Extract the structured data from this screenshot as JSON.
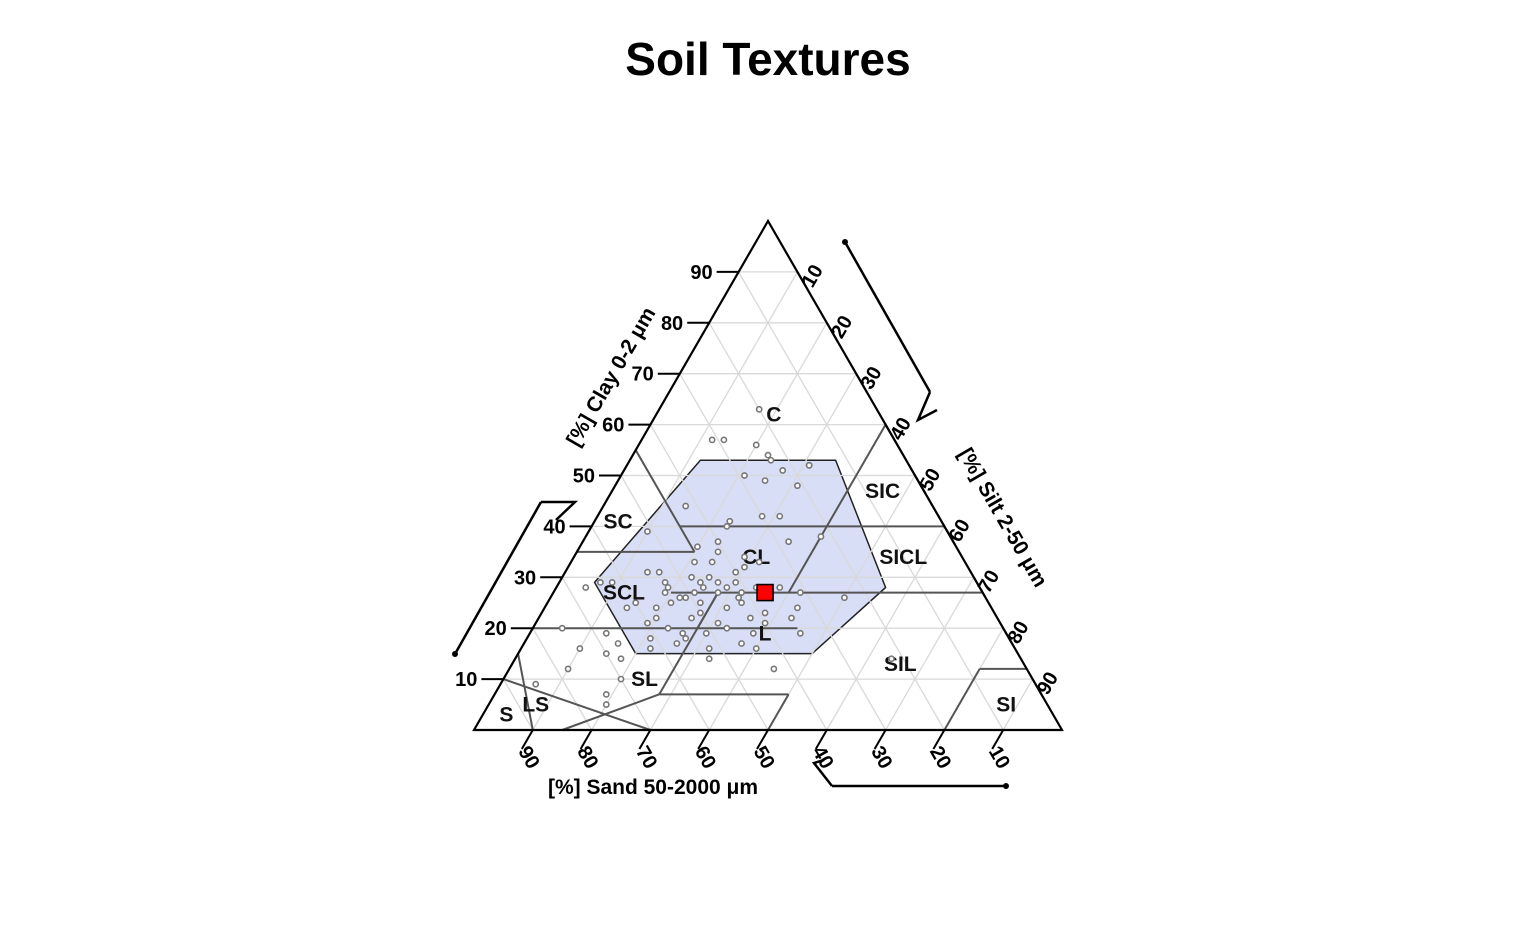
{
  "chart_data": {
    "type": "scatter",
    "subtype": "ternary-soil-texture",
    "title": "Soil Textures",
    "axes": {
      "clay": {
        "label": "[%] Clay 0-2 μm",
        "ticks": [
          10,
          20,
          30,
          40,
          50,
          60,
          70,
          80,
          90
        ]
      },
      "silt": {
        "label": "[%] Silt 2-50 μm",
        "ticks": [
          10,
          20,
          30,
          40,
          50,
          60,
          70,
          80,
          90
        ]
      },
      "sand": {
        "label": "[%] Sand 50-2000 μm",
        "ticks": [
          90,
          80,
          70,
          60,
          50,
          40,
          30,
          20,
          10
        ]
      },
      "ranges": [
        0,
        100
      ],
      "grid": true,
      "grid_step": 10
    },
    "texture_classes": [
      {
        "label": "C",
        "at": {
          "clay": 62,
          "silt": 20
        },
        "polygon": [
          [
            40,
            0
          ],
          [
            100,
            0
          ],
          [
            60,
            40
          ],
          [
            40,
            40
          ],
          [
            40,
            15
          ],
          [
            45,
            0
          ]
        ]
      },
      {
        "label": "SIC",
        "at": {
          "clay": 47,
          "silt": 46
        },
        "polygon": [
          [
            40,
            40
          ],
          [
            60,
            40
          ],
          [
            40,
            60
          ]
        ]
      },
      {
        "label": "SC",
        "at": {
          "clay": 41,
          "silt": 4
        },
        "polygon": [
          [
            35,
            0
          ],
          [
            55,
            0
          ],
          [
            35,
            20
          ]
        ]
      },
      {
        "label": "SICL",
        "at": {
          "clay": 34,
          "silt": 56
        },
        "polygon": [
          [
            27,
            40
          ],
          [
            40,
            40
          ],
          [
            40,
            60
          ],
          [
            27,
            73
          ]
        ]
      },
      {
        "label": "CL",
        "at": {
          "clay": 34,
          "silt": 31
        },
        "polygon": [
          [
            27,
            20
          ],
          [
            40,
            15
          ],
          [
            40,
            40
          ],
          [
            27,
            40
          ]
        ]
      },
      {
        "label": "SCL",
        "at": {
          "clay": 27,
          "silt": 12
        },
        "polygon": [
          [
            20,
            0
          ],
          [
            35,
            0
          ],
          [
            35,
            20
          ],
          [
            27,
            28
          ],
          [
            20,
            28
          ]
        ]
      },
      {
        "label": "L",
        "at": {
          "clay": 19,
          "silt": 40
        },
        "polygon": [
          [
            7,
            28
          ],
          [
            27,
            28
          ],
          [
            27,
            50
          ],
          [
            7,
            50
          ]
        ]
      },
      {
        "label": "SIL",
        "at": {
          "clay": 13,
          "silt": 66
        },
        "polygon": [
          [
            0,
            50
          ],
          [
            27,
            50
          ],
          [
            27,
            73
          ],
          [
            12,
            88
          ],
          [
            0,
            80
          ]
        ]
      },
      {
        "label": "SL",
        "at": {
          "clay": 10,
          "silt": 24
        },
        "polygon": [
          [
            0,
            15
          ],
          [
            7,
            28
          ],
          [
            7,
            50
          ],
          [
            0,
            50
          ]
        ]
      },
      {
        "label": "LS",
        "at": {
          "clay": 5,
          "silt": 8
        },
        "polygon": [
          [
            0,
            10
          ],
          [
            15,
            0
          ],
          [
            0,
            30
          ]
        ]
      },
      {
        "label": "S",
        "at": {
          "clay": 3,
          "silt": 4
        },
        "polygon": [
          [
            0,
            0
          ],
          [
            10,
            0
          ],
          [
            0,
            10
          ]
        ]
      },
      {
        "label": "SI",
        "at": {
          "clay": 5,
          "silt": 88
        },
        "polygon": [
          [
            0,
            80
          ],
          [
            12,
            88
          ],
          [
            12,
            88
          ],
          [
            0,
            100
          ]
        ]
      }
    ],
    "class_boundaries": [
      [
        [
          55,
          0
        ],
        [
          40,
          15
        ]
      ],
      [
        [
          40,
          15
        ],
        [
          40,
          60
        ]
      ],
      [
        [
          40,
          60
        ],
        [
          60,
          40
        ]
      ],
      [
        [
          35,
          0
        ],
        [
          35,
          20
        ]
      ],
      [
        [
          35,
          20
        ],
        [
          40,
          15
        ]
      ],
      [
        [
          40,
          40
        ],
        [
          27,
          40
        ]
      ],
      [
        [
          40,
          40
        ],
        [
          60,
          40
        ]
      ],
      [
        [
          27,
          20
        ],
        [
          27,
          73
        ]
      ],
      [
        [
          27,
          28
        ],
        [
          20,
          28
        ]
      ],
      [
        [
          20,
          0
        ],
        [
          20,
          28
        ]
      ],
      [
        [
          27,
          28
        ],
        [
          7,
          28
        ]
      ],
      [
        [
          7,
          28
        ],
        [
          7,
          50
        ]
      ],
      [
        [
          7,
          50
        ],
        [
          0,
          50
        ]
      ],
      [
        [
          12,
          88
        ],
        [
          12,
          80
        ]
      ],
      [
        [
          12,
          80
        ],
        [
          0,
          80
        ]
      ],
      [
        [
          10,
          0
        ],
        [
          0,
          30
        ]
      ],
      [
        [
          15,
          0
        ],
        [
          0,
          10
        ]
      ],
      [
        [
          20,
          28
        ],
        [
          20,
          45
        ]
      ],
      [
        [
          0,
          15
        ],
        [
          7,
          28
        ]
      ]
    ],
    "highlight_region": {
      "color": "#d6dcf5",
      "polygon": [
        [
          15,
          20
        ],
        [
          15,
          50
        ],
        [
          28,
          56
        ],
        [
          53,
          35
        ],
        [
          53,
          12
        ],
        [
          29,
          6
        ]
      ]
    },
    "samples": [
      [
        63,
        17
      ],
      [
        57,
        12
      ],
      [
        57,
        14
      ],
      [
        56,
        20
      ],
      [
        54,
        23
      ],
      [
        53,
        24
      ],
      [
        52,
        31
      ],
      [
        52,
        31
      ],
      [
        51,
        27
      ],
      [
        50,
        21
      ],
      [
        49,
        25
      ],
      [
        48,
        31
      ],
      [
        44,
        14
      ],
      [
        42,
        28
      ],
      [
        42,
        31
      ],
      [
        41,
        23
      ],
      [
        40,
        23
      ],
      [
        39,
        10
      ],
      [
        38,
        40
      ],
      [
        37,
        23
      ],
      [
        37,
        35
      ],
      [
        36,
        20
      ],
      [
        35,
        24
      ],
      [
        34,
        29
      ],
      [
        33,
        21
      ],
      [
        33,
        24
      ],
      [
        33,
        32
      ],
      [
        32,
        30
      ],
      [
        31,
        14
      ],
      [
        31,
        16
      ],
      [
        31,
        29
      ],
      [
        30,
        22
      ],
      [
        30,
        25
      ],
      [
        29,
        7
      ],
      [
        29,
        9
      ],
      [
        29,
        18
      ],
      [
        29,
        24
      ],
      [
        29,
        27
      ],
      [
        29,
        30
      ],
      [
        28,
        5
      ],
      [
        28,
        19
      ],
      [
        28,
        25
      ],
      [
        28,
        29
      ],
      [
        28,
        34
      ],
      [
        28,
        38
      ],
      [
        27,
        19
      ],
      [
        27,
        24
      ],
      [
        27,
        28
      ],
      [
        27,
        32
      ],
      [
        27,
        36
      ],
      [
        27,
        42
      ],
      [
        26,
        22
      ],
      [
        26,
        23
      ],
      [
        26,
        32
      ],
      [
        26,
        50
      ],
      [
        25,
        15
      ],
      [
        25,
        21
      ],
      [
        25,
        26
      ],
      [
        25,
        33
      ],
      [
        24,
        14
      ],
      [
        24,
        19
      ],
      [
        24,
        31
      ],
      [
        24,
        43
      ],
      [
        23,
        27
      ],
      [
        23,
        38
      ],
      [
        22,
        20
      ],
      [
        22,
        26
      ],
      [
        22,
        36
      ],
      [
        22,
        43
      ],
      [
        21,
        19
      ],
      [
        21,
        31
      ],
      [
        21,
        39
      ],
      [
        20,
        5
      ],
      [
        20,
        23
      ],
      [
        20,
        33
      ],
      [
        19,
        13
      ],
      [
        19,
        26
      ],
      [
        19,
        30
      ],
      [
        19,
        38
      ],
      [
        19,
        46
      ],
      [
        18,
        21
      ],
      [
        18,
        27
      ],
      [
        17,
        16
      ],
      [
        17,
        26
      ],
      [
        17,
        37
      ],
      [
        16,
        10
      ],
      [
        16,
        22
      ],
      [
        16,
        32
      ],
      [
        16,
        40
      ],
      [
        15,
        15
      ],
      [
        14,
        18
      ],
      [
        14,
        33
      ],
      [
        14,
        64
      ],
      [
        12,
        10
      ],
      [
        12,
        45
      ],
      [
        10,
        20
      ],
      [
        9,
        6
      ],
      [
        7,
        19
      ],
      [
        5,
        20
      ]
    ],
    "marker": {
      "clay": 27,
      "silt": 36,
      "color": "#ff0000"
    }
  }
}
